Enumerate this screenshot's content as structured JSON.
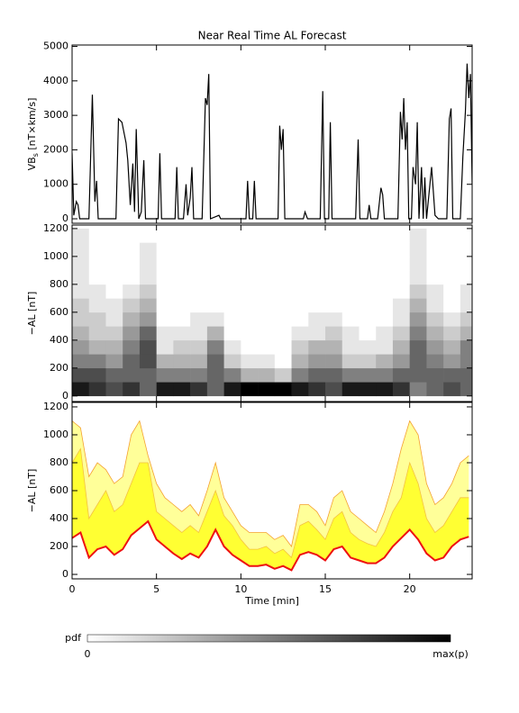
{
  "chart_data": [
    {
      "type": "line",
      "title": "Near Real Time AL Forecast",
      "y_label": {
        "main": "VB",
        "sub": "s",
        "unit": " [nT×km/s]"
      },
      "color": "#000000",
      "x": [
        0,
        0.1,
        0.25,
        0.35,
        0.45,
        1.0,
        1.2,
        1.35,
        1.45,
        1.55,
        2.6,
        2.75,
        2.95,
        3.2,
        3.3,
        3.45,
        3.6,
        3.7,
        3.8,
        3.95,
        4.1,
        4.25,
        4.35,
        5.1,
        5.2,
        5.3,
        6.1,
        6.2,
        6.3,
        6.6,
        6.75,
        6.85,
        7.0,
        7.1,
        7.2,
        7.7,
        7.9,
        8.0,
        8.1,
        8.2,
        8.7,
        8.8,
        10.3,
        10.4,
        10.5,
        10.7,
        10.8,
        10.9,
        12.2,
        12.3,
        12.4,
        12.5,
        12.6,
        13.7,
        13.8,
        13.95,
        14.7,
        14.85,
        14.95,
        15.2,
        15.3,
        15.4,
        16.8,
        16.95,
        17.05,
        17.5,
        17.6,
        17.7,
        18.1,
        18.3,
        18.4,
        18.5,
        19.3,
        19.45,
        19.55,
        19.65,
        19.75,
        19.85,
        19.95,
        20.1,
        20.2,
        20.35,
        20.45,
        20.55,
        20.7,
        20.8,
        20.9,
        21.0,
        21.3,
        21.5,
        21.7,
        22.2,
        22.35,
        22.45,
        22.55,
        23.0,
        23.15,
        23.3,
        23.4,
        23.5,
        23.6,
        23.7
      ],
      "values": [
        1900,
        100,
        500,
        400,
        0,
        0,
        3600,
        500,
        1100,
        0,
        0,
        2900,
        2800,
        2200,
        1700,
        400,
        1600,
        200,
        2600,
        0,
        200,
        1700,
        0,
        0,
        1900,
        0,
        0,
        1500,
        0,
        0,
        1000,
        100,
        600,
        1500,
        0,
        0,
        3500,
        3300,
        4200,
        0,
        100,
        0,
        0,
        1100,
        0,
        0,
        1100,
        0,
        0,
        2700,
        2000,
        2600,
        0,
        0,
        200,
        0,
        0,
        3700,
        0,
        0,
        2800,
        0,
        0,
        2300,
        0,
        0,
        400,
        0,
        0,
        900,
        700,
        0,
        0,
        3100,
        2300,
        3500,
        2000,
        2800,
        0,
        0,
        1500,
        1000,
        2800,
        0,
        1500,
        0,
        1200,
        0,
        1500,
        100,
        0,
        0,
        2900,
        3200,
        0,
        0,
        1800,
        3100,
        4500,
        3500,
        4200,
        1000
      ],
      "xlim": [
        0,
        23.7
      ],
      "xticks": [
        0,
        5,
        10,
        15,
        20
      ],
      "ylim": [
        -130,
        5040
      ],
      "yticks": [
        0,
        1000,
        2000,
        3000,
        4000,
        5000
      ]
    },
    {
      "type": "heatmap",
      "y_label": "−AL [nT]",
      "colorbar": {
        "label": "pdf",
        "min_label": "0",
        "max_label": "max(p)"
      },
      "x_bins": [
        0,
        1,
        2,
        3,
        4,
        5,
        6,
        7,
        8,
        9,
        10,
        11,
        12,
        13,
        14,
        15,
        16,
        17,
        18,
        19,
        20,
        21,
        22,
        23,
        24
      ],
      "y_bins": [
        0,
        100,
        200,
        300,
        400,
        500,
        600,
        700,
        800,
        900,
        1000,
        1100,
        1200
      ],
      "z": [
        [
          0.9,
          0.8,
          0.7,
          0.8,
          0.6,
          0.9,
          0.9,
          0.8,
          0.6,
          0.9,
          1,
          1,
          1,
          0.9,
          0.8,
          0.7,
          0.9,
          0.9,
          0.9,
          0.8,
          0.5,
          0.6,
          0.7,
          0.6
        ],
        [
          0.7,
          0.7,
          0.6,
          0.6,
          0.6,
          0.5,
          0.5,
          0.5,
          0.6,
          0.5,
          0.3,
          0.3,
          0.2,
          0.5,
          0.6,
          0.6,
          0.5,
          0.5,
          0.5,
          0.6,
          0.6,
          0.6,
          0.6,
          0.6
        ],
        [
          0.5,
          0.5,
          0.4,
          0.6,
          0.7,
          0.3,
          0.3,
          0.3,
          0.6,
          0.2,
          0.1,
          0.1,
          0,
          0.3,
          0.4,
          0.4,
          0.2,
          0.2,
          0.3,
          0.4,
          0.6,
          0.5,
          0.4,
          0.5
        ],
        [
          0.4,
          0.3,
          0.3,
          0.5,
          0.7,
          0.1,
          0.2,
          0.2,
          0.5,
          0.1,
          0,
          0,
          0,
          0.2,
          0.3,
          0.3,
          0.1,
          0.1,
          0.1,
          0.3,
          0.6,
          0.4,
          0.3,
          0.5
        ],
        [
          0.3,
          0.2,
          0.2,
          0.4,
          0.6,
          0.1,
          0.1,
          0.1,
          0.3,
          0,
          0,
          0,
          0,
          0.1,
          0.1,
          0.2,
          0.1,
          0,
          0.1,
          0.2,
          0.5,
          0.3,
          0.2,
          0.3
        ],
        [
          0.2,
          0.2,
          0.1,
          0.3,
          0.4,
          0,
          0,
          0.1,
          0.1,
          0,
          0,
          0,
          0,
          0,
          0.1,
          0.1,
          0,
          0,
          0,
          0.1,
          0.4,
          0.2,
          0.1,
          0.2
        ],
        [
          0.2,
          0.1,
          0.1,
          0.2,
          0.3,
          0,
          0,
          0,
          0,
          0,
          0,
          0,
          0,
          0,
          0,
          0,
          0,
          0,
          0,
          0.1,
          0.3,
          0.1,
          0,
          0.1
        ],
        [
          0.1,
          0.1,
          0,
          0.1,
          0.2,
          0,
          0,
          0,
          0,
          0,
          0,
          0,
          0,
          0,
          0,
          0,
          0,
          0,
          0,
          0,
          0.2,
          0.1,
          0,
          0.1
        ],
        [
          0.1,
          0,
          0,
          0,
          0.1,
          0,
          0,
          0,
          0,
          0,
          0,
          0,
          0,
          0,
          0,
          0,
          0,
          0,
          0,
          0,
          0.1,
          0,
          0,
          0
        ],
        [
          0.1,
          0,
          0,
          0,
          0.1,
          0,
          0,
          0,
          0,
          0,
          0,
          0,
          0,
          0,
          0,
          0,
          0,
          0,
          0,
          0,
          0.1,
          0,
          0,
          0
        ],
        [
          0.1,
          0,
          0,
          0,
          0.1,
          0,
          0,
          0,
          0,
          0,
          0,
          0,
          0,
          0,
          0,
          0,
          0,
          0,
          0,
          0,
          0.1,
          0,
          0,
          0
        ],
        [
          0.1,
          0,
          0,
          0,
          0,
          0,
          0,
          0,
          0,
          0,
          0,
          0,
          0,
          0,
          0,
          0,
          0,
          0,
          0,
          0,
          0.1,
          0,
          0,
          0
        ]
      ],
      "xlim": [
        0,
        23.7
      ],
      "xticks": [
        0,
        5,
        10,
        15,
        20
      ],
      "ylim": [
        -40,
        1225
      ],
      "yticks": [
        0,
        200,
        400,
        600,
        800,
        1000,
        1200
      ]
    },
    {
      "type": "band",
      "x_label": "Time [min]",
      "y_label": "−AL [nT]",
      "x": [
        0,
        0.5,
        1,
        1.5,
        2,
        2.5,
        3,
        3.5,
        4,
        4.5,
        5,
        5.5,
        6,
        6.5,
        7,
        7.5,
        8,
        8.5,
        9,
        9.5,
        10,
        10.5,
        11,
        11.5,
        12,
        12.5,
        13,
        13.5,
        14,
        14.5,
        15,
        15.5,
        16,
        16.5,
        17,
        17.5,
        18,
        18.5,
        19,
        19.5,
        20,
        20.5,
        21,
        21.5,
        22,
        22.5,
        23,
        23.5
      ],
      "series": [
        {
          "color": "#ffff99",
          "edge": "#f4a030",
          "values": [
            1100,
            1050,
            700,
            800,
            750,
            650,
            700,
            1000,
            1100,
            850,
            650,
            550,
            500,
            450,
            500,
            420,
            600,
            800,
            550,
            450,
            350,
            300,
            300,
            300,
            250,
            280,
            200,
            500,
            500,
            450,
            350,
            550,
            600,
            450,
            400,
            350,
            300,
            450,
            650,
            900,
            1100,
            1000,
            650,
            500,
            550,
            650,
            800,
            850
          ]
        },
        {
          "color": "#ffff33",
          "edge": "#f4c040",
          "values": [
            800,
            900,
            400,
            500,
            600,
            450,
            500,
            650,
            800,
            800,
            450,
            400,
            350,
            300,
            350,
            300,
            450,
            600,
            420,
            350,
            250,
            180,
            180,
            200,
            150,
            180,
            120,
            350,
            380,
            320,
            250,
            400,
            450,
            300,
            250,
            220,
            200,
            300,
            450,
            550,
            800,
            650,
            400,
            300,
            350,
            450,
            550,
            550
          ]
        },
        {
          "color": "#ee1111",
          "values": [
            260,
            300,
            120,
            180,
            200,
            140,
            180,
            280,
            330,
            380,
            250,
            200,
            150,
            110,
            150,
            120,
            200,
            320,
            200,
            140,
            100,
            60,
            60,
            70,
            40,
            60,
            30,
            140,
            160,
            140,
            100,
            180,
            200,
            120,
            100,
            80,
            80,
            120,
            200,
            260,
            320,
            250,
            150,
            100,
            120,
            200,
            250,
            270
          ]
        }
      ],
      "xlim": [
        0,
        23.7
      ],
      "xticks": [
        0,
        5,
        10,
        15,
        20
      ],
      "ylim": [
        -32,
        1232
      ],
      "yticks": [
        0,
        200,
        400,
        600,
        800,
        1000,
        1200
      ]
    }
  ]
}
